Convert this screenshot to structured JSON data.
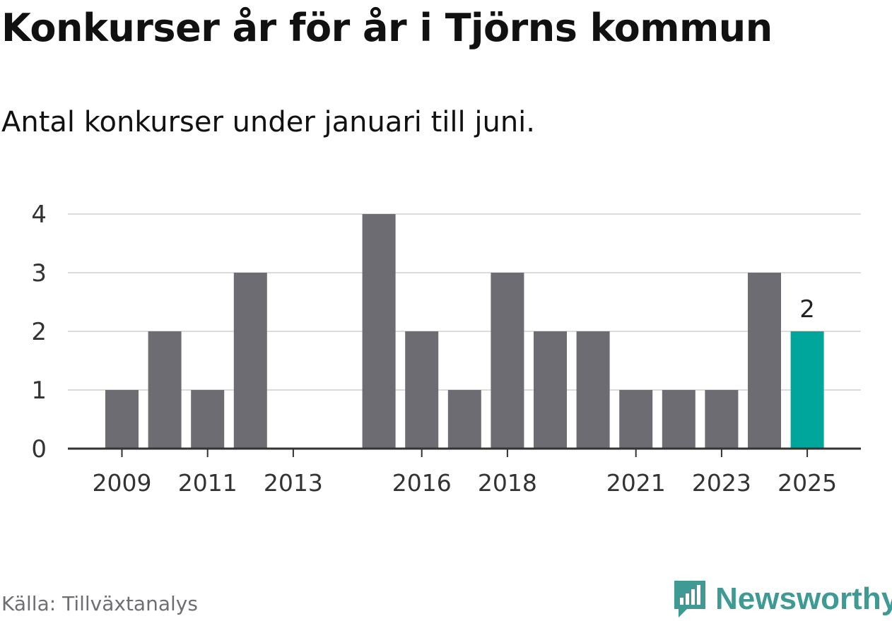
{
  "title": "Konkurser år för år i Tjörns kommun",
  "subtitle": "Antal konkurser under januari till juni.",
  "source": "Källa: Tillväxtanalys",
  "brand": {
    "name": "Newsworthy",
    "icon": "newsworthy-logo-icon",
    "color": "#3f9a94"
  },
  "chart_data": {
    "type": "bar",
    "categories": [
      "2009",
      "2010",
      "2011",
      "2012",
      "2013",
      "2014",
      "2015",
      "2016",
      "2017",
      "2018",
      "2019",
      "2020",
      "2021",
      "2022",
      "2023",
      "2024",
      "2025"
    ],
    "values": [
      1,
      2,
      1,
      3,
      0,
      0,
      4,
      2,
      1,
      3,
      2,
      2,
      1,
      1,
      1,
      3,
      2
    ],
    "x_tick_labels": [
      "2009",
      "2011",
      "2013",
      "2016",
      "2018",
      "2021",
      "2023",
      "2025"
    ],
    "y_ticks": [
      0,
      1,
      2,
      3,
      4
    ],
    "ylim": [
      0,
      4
    ],
    "grid": true,
    "highlight": {
      "category": "2025",
      "label": "2",
      "color": "#00a69c"
    },
    "bar_color": "#6d6c72"
  }
}
